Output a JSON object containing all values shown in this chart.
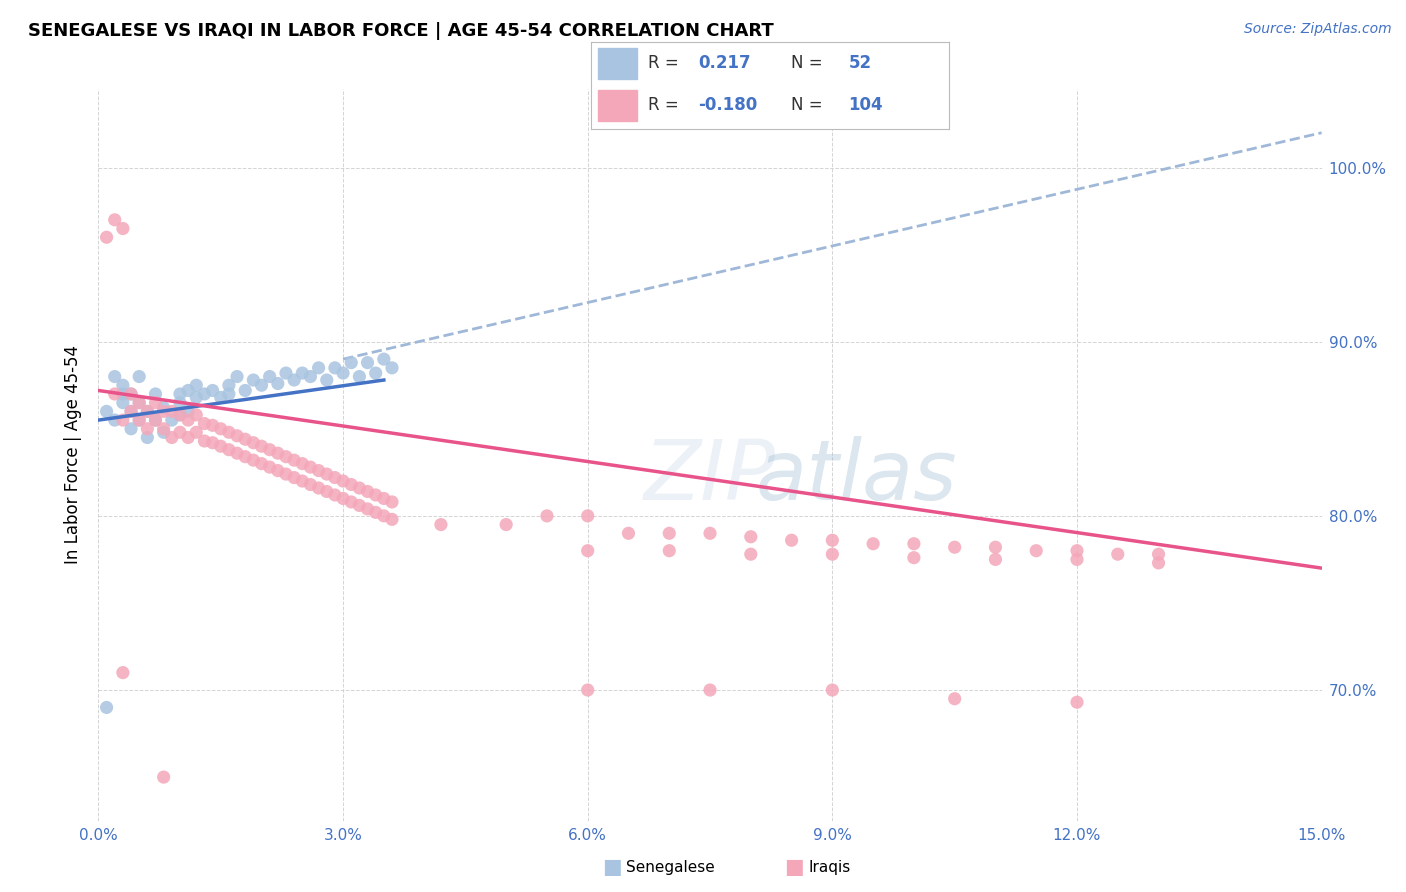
{
  "title": "SENEGALESE VS IRAQI IN LABOR FORCE | AGE 45-54 CORRELATION CHART",
  "source": "Source: ZipAtlas.com",
  "ylabel": "In Labor Force | Age 45-54",
  "xlim": [
    0.0,
    0.15
  ],
  "ylim": [
    0.625,
    1.045
  ],
  "blue_color": "#a8c4e0",
  "pink_color": "#f4a7b9",
  "blue_line_color": "#4472c4",
  "pink_line_color": "#e8538a",
  "dashed_line_color": "#a0b8d8",
  "legend_text_color": "#4472c4",
  "R_blue": 0.217,
  "N_blue": 52,
  "R_pink": -0.18,
  "N_pink": 104,
  "blue_scatter_x": [
    0.001,
    0.002,
    0.002,
    0.003,
    0.003,
    0.003,
    0.004,
    0.004,
    0.004,
    0.005,
    0.005,
    0.005,
    0.006,
    0.006,
    0.007,
    0.007,
    0.008,
    0.008,
    0.009,
    0.01,
    0.01,
    0.01,
    0.011,
    0.011,
    0.012,
    0.012,
    0.013,
    0.014,
    0.015,
    0.016,
    0.016,
    0.017,
    0.018,
    0.019,
    0.02,
    0.021,
    0.022,
    0.023,
    0.024,
    0.025,
    0.026,
    0.027,
    0.028,
    0.029,
    0.03,
    0.031,
    0.032,
    0.033,
    0.034,
    0.035,
    0.036,
    0.001
  ],
  "blue_scatter_y": [
    0.86,
    0.88,
    0.855,
    0.87,
    0.865,
    0.875,
    0.85,
    0.86,
    0.87,
    0.855,
    0.865,
    0.88,
    0.845,
    0.86,
    0.855,
    0.87,
    0.848,
    0.862,
    0.855,
    0.87,
    0.858,
    0.865,
    0.872,
    0.86,
    0.868,
    0.875,
    0.87,
    0.872,
    0.868,
    0.875,
    0.87,
    0.88,
    0.872,
    0.878,
    0.875,
    0.88,
    0.876,
    0.882,
    0.878,
    0.882,
    0.88,
    0.885,
    0.878,
    0.885,
    0.882,
    0.888,
    0.88,
    0.888,
    0.882,
    0.89,
    0.885,
    0.69
  ],
  "pink_scatter_x": [
    0.001,
    0.002,
    0.002,
    0.003,
    0.003,
    0.004,
    0.004,
    0.005,
    0.005,
    0.006,
    0.006,
    0.007,
    0.007,
    0.008,
    0.008,
    0.009,
    0.009,
    0.01,
    0.01,
    0.011,
    0.011,
    0.012,
    0.012,
    0.013,
    0.013,
    0.014,
    0.014,
    0.015,
    0.015,
    0.016,
    0.016,
    0.017,
    0.017,
    0.018,
    0.018,
    0.019,
    0.019,
    0.02,
    0.02,
    0.021,
    0.021,
    0.022,
    0.022,
    0.023,
    0.023,
    0.024,
    0.024,
    0.025,
    0.025,
    0.026,
    0.026,
    0.027,
    0.027,
    0.028,
    0.028,
    0.029,
    0.029,
    0.03,
    0.03,
    0.031,
    0.031,
    0.032,
    0.032,
    0.033,
    0.033,
    0.034,
    0.034,
    0.035,
    0.035,
    0.036,
    0.036,
    0.042,
    0.05,
    0.055,
    0.06,
    0.065,
    0.07,
    0.075,
    0.08,
    0.085,
    0.09,
    0.095,
    0.1,
    0.105,
    0.11,
    0.115,
    0.12,
    0.125,
    0.13,
    0.06,
    0.07,
    0.08,
    0.09,
    0.1,
    0.11,
    0.12,
    0.13,
    0.06,
    0.075,
    0.09,
    0.105,
    0.12,
    0.008,
    0.003
  ],
  "pink_scatter_y": [
    0.96,
    0.97,
    0.87,
    0.965,
    0.855,
    0.86,
    0.87,
    0.855,
    0.865,
    0.85,
    0.86,
    0.855,
    0.865,
    0.85,
    0.86,
    0.845,
    0.86,
    0.848,
    0.858,
    0.845,
    0.855,
    0.848,
    0.858,
    0.843,
    0.853,
    0.842,
    0.852,
    0.84,
    0.85,
    0.838,
    0.848,
    0.836,
    0.846,
    0.834,
    0.844,
    0.832,
    0.842,
    0.83,
    0.84,
    0.828,
    0.838,
    0.826,
    0.836,
    0.824,
    0.834,
    0.822,
    0.832,
    0.82,
    0.83,
    0.818,
    0.828,
    0.816,
    0.826,
    0.814,
    0.824,
    0.812,
    0.822,
    0.81,
    0.82,
    0.808,
    0.818,
    0.806,
    0.816,
    0.804,
    0.814,
    0.802,
    0.812,
    0.8,
    0.81,
    0.798,
    0.808,
    0.795,
    0.795,
    0.8,
    0.8,
    0.79,
    0.79,
    0.79,
    0.788,
    0.786,
    0.786,
    0.784,
    0.784,
    0.782,
    0.782,
    0.78,
    0.78,
    0.778,
    0.778,
    0.78,
    0.78,
    0.778,
    0.778,
    0.776,
    0.775,
    0.775,
    0.773,
    0.7,
    0.7,
    0.7,
    0.695,
    0.693,
    0.65,
    0.71
  ]
}
